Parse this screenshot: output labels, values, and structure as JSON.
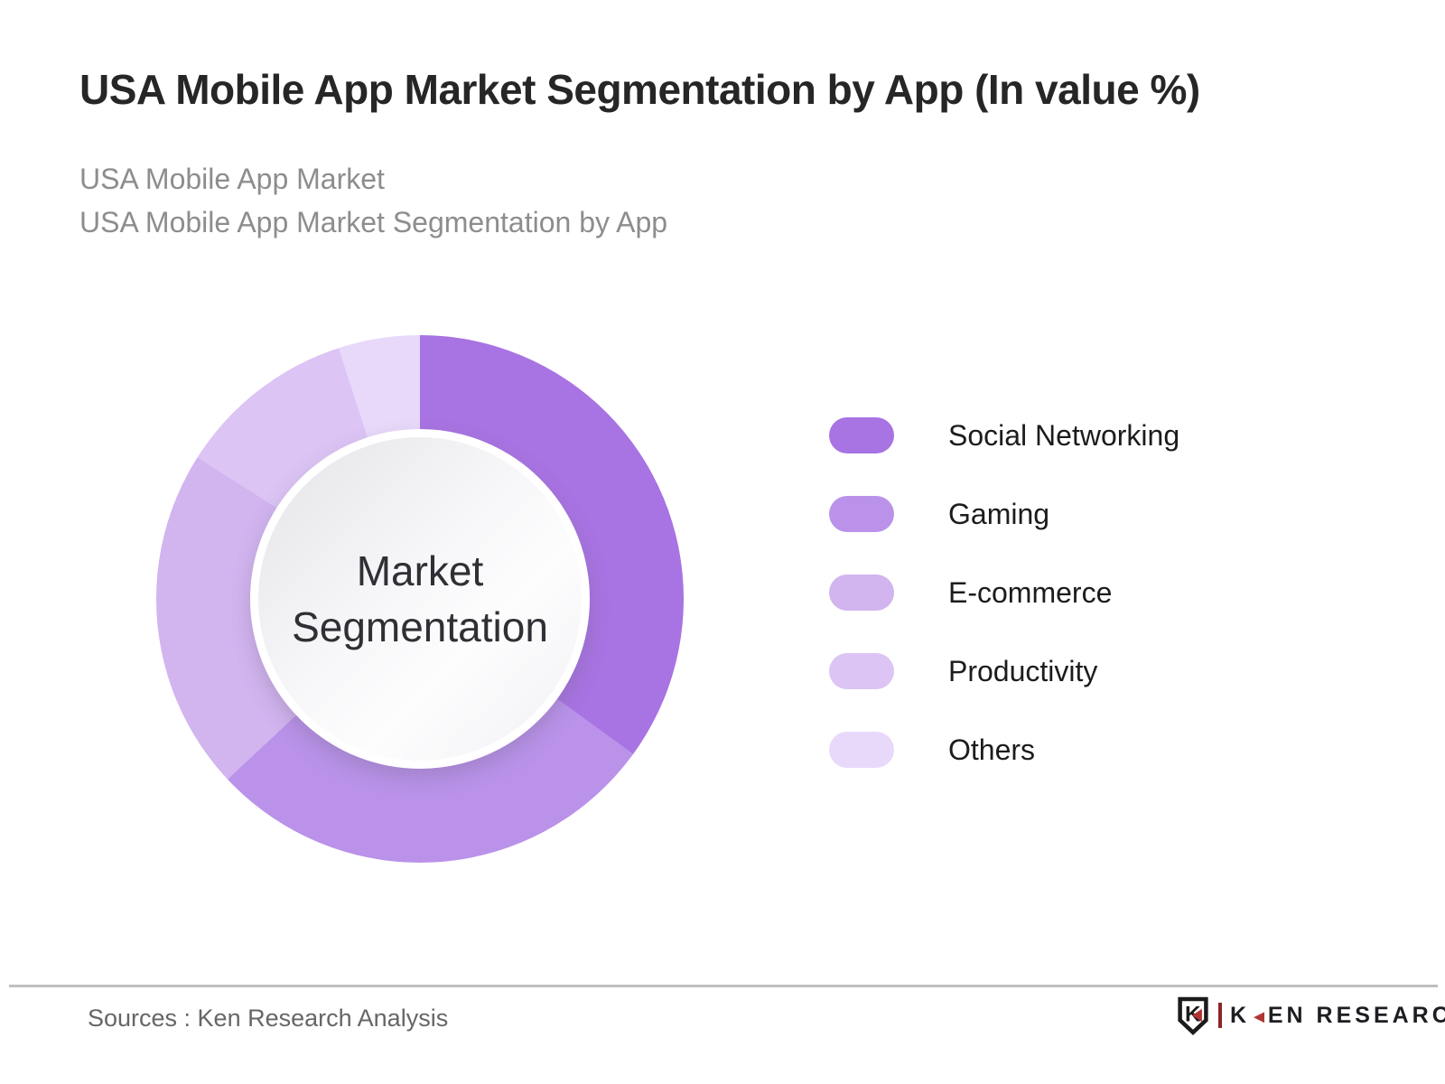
{
  "header": {
    "title": "USA Mobile App Market Segmentation by App (In value %)",
    "subtitle_line1": "USA Mobile App Market",
    "subtitle_line2": "USA Mobile App Market Segmentation by App"
  },
  "chart_data": {
    "type": "pie",
    "subtype": "donut",
    "title": "USA Mobile App Market Segmentation by App (In value %)",
    "center_label_line1": "Market",
    "center_label_line2": "Segmentation",
    "categories": [
      "Social Networking",
      "Gaming",
      "E-commerce",
      "Productivity",
      "Others"
    ],
    "values": [
      35,
      28,
      21,
      11,
      5
    ],
    "unit": "%",
    "colors": [
      "#a873e2",
      "#ba92ea",
      "#d2b4ef",
      "#dcc4f5",
      "#e8d9fa"
    ],
    "start_angle_deg": 0,
    "direction": "clockwise",
    "legend_position": "right",
    "data_labels_shown": false
  },
  "legend": {
    "items": [
      {
        "label": "Social Networking",
        "color": "#a873e2"
      },
      {
        "label": "Gaming",
        "color": "#ba92ea"
      },
      {
        "label": "E-commerce",
        "color": "#d2b4ef"
      },
      {
        "label": "Productivity",
        "color": "#dcc4f5"
      },
      {
        "label": "Others",
        "color": "#e8d9fa"
      }
    ]
  },
  "footer": {
    "sources": "Sources : Ken Research Analysis",
    "logo": {
      "shield_letter": "K",
      "text_k": "K",
      "arrow": "◄",
      "text_rest": "EN RESEARCH",
      "brand_red": "#b03434",
      "brand_dark": "#1d1d22"
    }
  }
}
